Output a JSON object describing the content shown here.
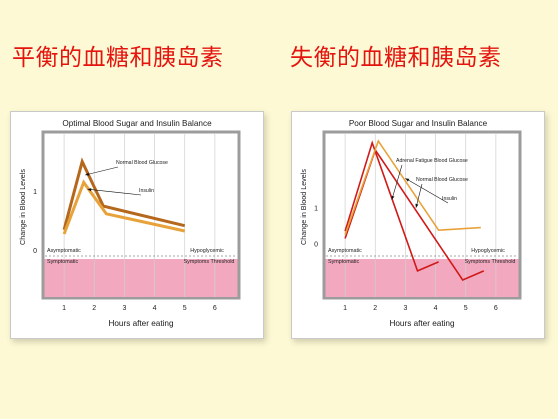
{
  "headings": {
    "left": "平衡的血糖和胰岛素",
    "right": "失衡的血糖和胰岛素"
  },
  "colors": {
    "glucose": "#b5671c",
    "insulin": "#e8a23a",
    "adrenal": "#d01a1a",
    "symptomatic_band": "#f2a9bf",
    "frame": "#9c9c9c",
    "background": "#fdf9d4",
    "heading": "#e4140f"
  },
  "chart_data": [
    {
      "type": "line",
      "title": "Optimal Blood Sugar and Insulin Balance",
      "xlabel": "Hours after eating",
      "ylabel": "Change in Blood Levels",
      "xticks": [
        "1",
        "2",
        "3",
        "4",
        "5",
        "6"
      ],
      "yticks": [
        "0",
        "1"
      ],
      "xlim": [
        0.3,
        6.8
      ],
      "ylim": [
        -0.8,
        2.0
      ],
      "regions": {
        "upper_label": "Asymptomatic",
        "lower_label": "Symptomatic",
        "right_upper_label": "Hypoglycemic",
        "right_lower_label": "Symptoms Threshold"
      },
      "series": [
        {
          "name": "Normal Blood Glucose",
          "color_key": "glucose",
          "x": [
            1.0,
            1.6,
            2.3,
            5.0
          ],
          "y": [
            0.35,
            1.5,
            0.75,
            0.42
          ]
        },
        {
          "name": "Insulin",
          "color_key": "insulin",
          "x": [
            1.0,
            1.65,
            2.4,
            5.0
          ],
          "y": [
            0.28,
            1.15,
            0.62,
            0.33
          ]
        }
      ],
      "annotations": [
        {
          "text": "Normal Blood Glucose",
          "series": 0
        },
        {
          "text": "Insulin",
          "series": 1
        }
      ]
    },
    {
      "type": "line",
      "title": "Poor Blood Sugar and Insulin Balance",
      "xlabel": "Hours after eating",
      "ylabel": "Change in Blood Levels",
      "xticks": [
        "1",
        "2",
        "3",
        "4",
        "5",
        "6"
      ],
      "yticks": [
        "0",
        "1"
      ],
      "xlim": [
        0.3,
        6.8
      ],
      "ylim": [
        -1.5,
        3.1
      ],
      "regions": {
        "upper_label": "Asymptomatic",
        "lower_label": "Symptomatic",
        "right_upper_label": "Hypoglycemic",
        "right_lower_label": "Symptoms Threshold"
      },
      "series": [
        {
          "name": "Adrenal Fatigue Blood Glucose",
          "color_key": "adrenal",
          "x": [
            1.0,
            1.9,
            3.4,
            4.1
          ],
          "y": [
            0.35,
            2.8,
            -0.75,
            -0.5
          ]
        },
        {
          "name": "Normal Blood Glucose",
          "color_key": "adrenal",
          "x": [
            1.0,
            2.0,
            4.9,
            5.6
          ],
          "y": [
            0.15,
            2.6,
            -1.0,
            -0.75
          ]
        },
        {
          "name": "Insulin",
          "color_key": "insulin",
          "x": [
            1.0,
            2.1,
            4.1,
            5.5
          ],
          "y": [
            0.25,
            2.85,
            0.38,
            0.45
          ]
        }
      ],
      "annotations": [
        {
          "text": "Adrenal Fatigue Blood Glucose",
          "series": 0
        },
        {
          "text": "Normal Blood Glucose",
          "series": 1
        },
        {
          "text": "Insulin",
          "series": 2
        }
      ]
    }
  ]
}
